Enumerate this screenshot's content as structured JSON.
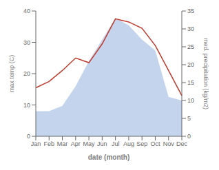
{
  "chart_data": {
    "type": "line",
    "xlabel": "date (month)",
    "ylabel": "max temp (C)",
    "y2label": "med. precipitation (kg/m2)",
    "categories": [
      "Jan",
      "Feb",
      "Mar",
      "Apr",
      "May",
      "Jun",
      "Jul",
      "Aug",
      "Sep",
      "Oct",
      "Nov",
      "Dec"
    ],
    "series": [
      {
        "type": "area",
        "axis": "y2",
        "color": "#c5d4ed",
        "values": [
          7.0,
          7.0,
          8.5,
          14.0,
          21.0,
          27.0,
          33.0,
          31.0,
          27.0,
          24.0,
          11.0,
          10.0
        ]
      },
      {
        "type": "line",
        "color": "#c0392b",
        "values": [
          15.5,
          17.5,
          21.0,
          25.0,
          23.5,
          29.5,
          37.5,
          36.5,
          34.5,
          29.0,
          21.0,
          13.0
        ]
      }
    ],
    "ylim": [
      0,
      40
    ],
    "yticks": [
      0,
      10,
      20,
      30,
      40
    ],
    "y2lim": [
      0,
      35
    ],
    "y2ticks": [
      0,
      5,
      10,
      15,
      20,
      25,
      30,
      35
    ],
    "grid": false
  }
}
